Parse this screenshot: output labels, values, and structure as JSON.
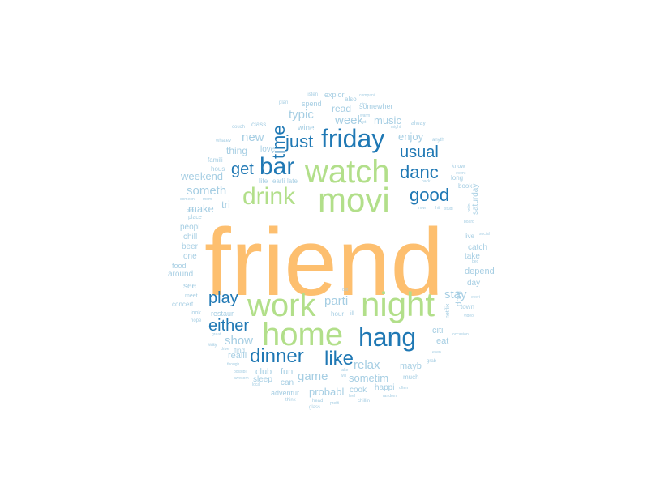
{
  "colors": {
    "orange": "#fdbf6f",
    "green": "#b2df8a",
    "blue": "#1f78b4",
    "lightblue": "#a6cee3"
  },
  "words": [
    {
      "text": "friend",
      "color": "orange"
    },
    {
      "text": "movi",
      "color": "green"
    },
    {
      "text": "watch",
      "color": "green"
    },
    {
      "text": "night",
      "color": "green"
    },
    {
      "text": "home",
      "color": "green"
    },
    {
      "text": "work",
      "color": "green"
    },
    {
      "text": "drink",
      "color": "green"
    },
    {
      "text": "hang",
      "color": "blue"
    },
    {
      "text": "friday",
      "color": "blue"
    },
    {
      "text": "bar",
      "color": "blue"
    },
    {
      "text": "dinner",
      "color": "blue"
    },
    {
      "text": "like",
      "color": "blue"
    },
    {
      "text": "good",
      "color": "blue"
    },
    {
      "text": "danc",
      "color": "blue"
    },
    {
      "text": "just",
      "color": "blue"
    },
    {
      "text": "usual",
      "color": "blue"
    },
    {
      "text": "get",
      "color": "blue"
    },
    {
      "text": "play",
      "color": "blue"
    },
    {
      "text": "either",
      "color": "blue"
    },
    {
      "text": "time",
      "color": "blue"
    },
    {
      "text": "someth",
      "color": "lightblue"
    },
    {
      "text": "week",
      "color": "lightblue"
    },
    {
      "text": "typic",
      "color": "lightblue"
    },
    {
      "text": "new",
      "color": "lightblue"
    },
    {
      "text": "relax",
      "color": "lightblue"
    },
    {
      "text": "game",
      "color": "lightblue"
    },
    {
      "text": "stay",
      "color": "lightblue"
    },
    {
      "text": "parti",
      "color": "lightblue"
    },
    {
      "text": "show",
      "color": "lightblue"
    },
    {
      "text": "sometim",
      "color": "lightblue"
    },
    {
      "text": "probabl",
      "color": "lightblue"
    },
    {
      "text": "music",
      "color": "lightblue"
    },
    {
      "text": "enjoy",
      "color": "lightblue"
    },
    {
      "text": "weekend",
      "color": "lightblue"
    },
    {
      "text": "tri",
      "color": "lightblue"
    },
    {
      "text": "make",
      "color": "lightblue"
    },
    {
      "text": "thing",
      "color": "lightblue"
    },
    {
      "text": "love",
      "color": "lightblue"
    },
    {
      "text": "read",
      "color": "lightblue"
    },
    {
      "text": "wine",
      "color": "lightblue"
    },
    {
      "text": "spend",
      "color": "lightblue"
    },
    {
      "text": "somewher",
      "color": "lightblue"
    },
    {
      "text": "explor",
      "color": "lightblue"
    },
    {
      "text": "also",
      "color": "lightblue"
    },
    {
      "text": "listen",
      "color": "lightblue"
    },
    {
      "text": "compani",
      "color": "lightblue"
    },
    {
      "text": "plan",
      "color": "lightblue"
    },
    {
      "text": "class",
      "color": "lightblue"
    },
    {
      "text": "couch",
      "color": "lightblue"
    },
    {
      "text": "whatev",
      "color": "lightblue"
    },
    {
      "text": "famili",
      "color": "lightblue"
    },
    {
      "text": "hous",
      "color": "lightblue"
    },
    {
      "text": "someon",
      "color": "lightblue"
    },
    {
      "text": "mom",
      "color": "lightblue"
    },
    {
      "text": "place",
      "color": "lightblue"
    },
    {
      "text": "chill",
      "color": "lightblue"
    },
    {
      "text": "peopl",
      "color": "lightblue"
    },
    {
      "text": "beer",
      "color": "lightblue"
    },
    {
      "text": "one",
      "color": "lightblue"
    },
    {
      "text": "food",
      "color": "lightblue"
    },
    {
      "text": "around",
      "color": "lightblue"
    },
    {
      "text": "see",
      "color": "lightblue"
    },
    {
      "text": "meet",
      "color": "lightblue"
    },
    {
      "text": "concert",
      "color": "lightblue"
    },
    {
      "text": "look",
      "color": "lightblue"
    },
    {
      "text": "hope",
      "color": "lightblue"
    },
    {
      "text": "restaur",
      "color": "lightblue"
    },
    {
      "text": "hour",
      "color": "lightblue"
    },
    {
      "text": "realli",
      "color": "lightblue"
    },
    {
      "text": "find",
      "color": "lightblue"
    },
    {
      "text": "club",
      "color": "lightblue"
    },
    {
      "text": "fun",
      "color": "lightblue"
    },
    {
      "text": "sleep",
      "color": "lightblue"
    },
    {
      "text": "can",
      "color": "lightblue"
    },
    {
      "text": "adventur",
      "color": "lightblue"
    },
    {
      "text": "think",
      "color": "lightblue"
    },
    {
      "text": "head",
      "color": "lightblue"
    },
    {
      "text": "glass",
      "color": "lightblue"
    },
    {
      "text": "cook",
      "color": "lightblue"
    },
    {
      "text": "happi",
      "color": "lightblue"
    },
    {
      "text": "chillin",
      "color": "lightblue"
    },
    {
      "text": "mayb",
      "color": "lightblue"
    },
    {
      "text": "much",
      "color": "lightblue"
    },
    {
      "text": "often",
      "color": "lightblue"
    },
    {
      "text": "citi",
      "color": "lightblue"
    },
    {
      "text": "eat",
      "color": "lightblue"
    },
    {
      "text": "even",
      "color": "lightblue"
    },
    {
      "text": "grab",
      "color": "lightblue"
    },
    {
      "text": "town",
      "color": "lightblue"
    },
    {
      "text": "day",
      "color": "lightblue"
    },
    {
      "text": "depend",
      "color": "lightblue"
    },
    {
      "text": "take",
      "color": "lightblue"
    },
    {
      "text": "catch",
      "color": "lightblue"
    },
    {
      "text": "live",
      "color": "lightblue"
    },
    {
      "text": "saturday",
      "color": "lightblue"
    },
    {
      "text": "book",
      "color": "lightblue"
    },
    {
      "text": "long",
      "color": "lightblue"
    },
    {
      "text": "know",
      "color": "lightblue"
    },
    {
      "text": "alway",
      "color": "lightblue"
    },
    {
      "text": "anyth",
      "color": "lightblue"
    },
    {
      "text": "dont",
      "color": "lightblue"
    },
    {
      "text": "netflix",
      "color": "lightblue"
    },
    {
      "text": "video",
      "color": "lightblue"
    },
    {
      "text": "occasion",
      "color": "lightblue"
    },
    {
      "text": "social",
      "color": "lightblue"
    },
    {
      "text": "board",
      "color": "lightblue"
    },
    {
      "text": "event",
      "color": "lightblue"
    },
    {
      "text": "back",
      "color": "lightblue"
    },
    {
      "text": "onlin",
      "color": "lightblue"
    },
    {
      "text": "bed",
      "color": "lightblue"
    },
    {
      "text": "everi",
      "color": "lightblue"
    },
    {
      "text": "late",
      "color": "lightblue"
    },
    {
      "text": "earli",
      "color": "lightblue"
    },
    {
      "text": "life",
      "color": "lightblue"
    },
    {
      "text": "great",
      "color": "lightblue"
    },
    {
      "text": "way",
      "color": "lightblue"
    },
    {
      "text": "drive",
      "color": "lightblue"
    },
    {
      "text": "though",
      "color": "lightblue"
    },
    {
      "text": "possibl",
      "color": "lightblue"
    },
    {
      "text": "awesom",
      "color": "lightblue"
    },
    {
      "text": "local",
      "color": "lightblue"
    },
    {
      "text": "pretti",
      "color": "lightblue"
    },
    {
      "text": "feel",
      "color": "lightblue"
    },
    {
      "text": "random",
      "color": "lightblue"
    },
    {
      "text": "will",
      "color": "lightblue"
    },
    {
      "text": "take",
      "color": "lightblue"
    },
    {
      "text": "nice",
      "color": "lightblue"
    },
    {
      "text": "warm",
      "color": "lightblue"
    },
    {
      "text": "lot",
      "color": "lightblue"
    },
    {
      "text": "might",
      "color": "lightblue"
    },
    {
      "text": "gym",
      "color": "lightblue"
    },
    {
      "text": "hit",
      "color": "lightblue"
    },
    {
      "text": "studi",
      "color": "lightblue"
    },
    {
      "text": "now",
      "color": "lightblue"
    },
    {
      "text": "ill",
      "color": "lightblue"
    },
    {
      "text": "out",
      "color": "lightblue"
    }
  ]
}
